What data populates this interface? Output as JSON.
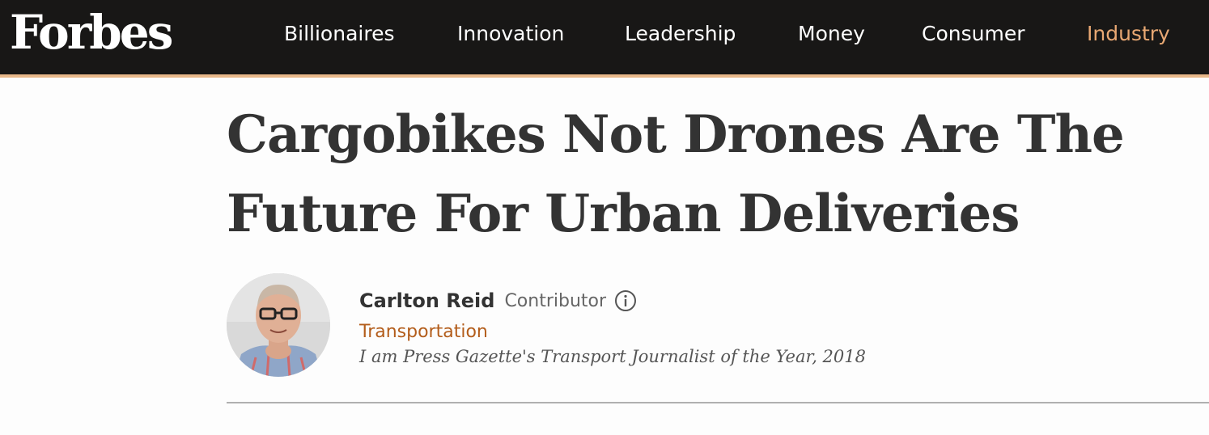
{
  "header": {
    "logo": "Forbes",
    "nav": [
      {
        "label": "Billionaires",
        "active": false
      },
      {
        "label": "Innovation",
        "active": false
      },
      {
        "label": "Leadership",
        "active": false
      },
      {
        "label": "Money",
        "active": false
      },
      {
        "label": "Consumer",
        "active": false
      },
      {
        "label": "Industry",
        "active": true
      }
    ],
    "colors": {
      "background": "#181716",
      "accent": "#e8b88a",
      "active_nav": "#e8a873"
    }
  },
  "article": {
    "headline_line1": "Cargobikes Not Drones Are The",
    "headline_line2": "Future For Urban Deliveries",
    "author": {
      "name": "Carlton Reid",
      "role": "Contributor",
      "info_icon": "info-icon",
      "channel": "Transportation",
      "bio": "I am Press Gazette's Transport Journalist of the Year, 2018",
      "channel_color": "#b35d1b"
    }
  }
}
